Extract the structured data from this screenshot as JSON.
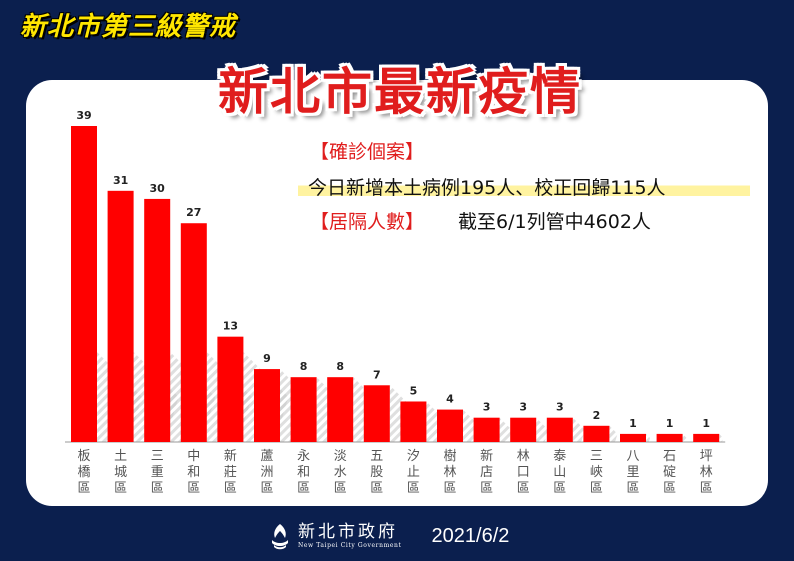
{
  "banner": {
    "tag": "新北市第三級警戒"
  },
  "title": "新北市最新疫情",
  "info": {
    "cases_label": "【確診個案】",
    "cases_text": "今日新增本土病例195人、校正回歸115人",
    "quarantine_label": "【居隔人數】",
    "quarantine_text": "截至6/1列管中4602人"
  },
  "footer": {
    "logo_cn": "新北市政府",
    "logo_en": "New Taipei City Government",
    "date": "2021/6/2"
  },
  "colors": {
    "bar": "#ff0000",
    "background": "#0b1f4e",
    "title": "#e01d1d",
    "banner": "#ffe600"
  },
  "chart_data": {
    "type": "bar",
    "categories": [
      "板橋區",
      "土城區",
      "三重區",
      "中和區",
      "新莊區",
      "蘆洲區",
      "永和區",
      "淡水區",
      "五股區",
      "汐止區",
      "樹林區",
      "新店區",
      "林口區",
      "泰山區",
      "三峽區",
      "八里區",
      "石碇區",
      "坪林區"
    ],
    "values": [
      39,
      31,
      30,
      27,
      13,
      9,
      8,
      8,
      7,
      5,
      4,
      3,
      3,
      3,
      2,
      1,
      1,
      1
    ],
    "title": "",
    "xlabel": "",
    "ylabel": "",
    "ylim": [
      0,
      39
    ],
    "grid": false,
    "data_labels": true
  }
}
